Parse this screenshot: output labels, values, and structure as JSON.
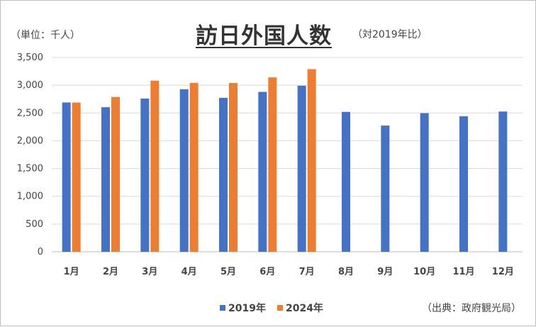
{
  "chart_data": {
    "type": "bar",
    "title": "訪日外国人数",
    "subtitle": "（対2019年比）",
    "unit_label": "（単位：千人）",
    "source": "（出典：政府観光局）",
    "categories": [
      "1月",
      "2月",
      "3月",
      "4月",
      "5月",
      "6月",
      "7月",
      "8月",
      "9月",
      "10月",
      "11月",
      "12月"
    ],
    "series": [
      {
        "name": "2019年",
        "color": "#4472C4",
        "values": [
          2689,
          2604,
          2760,
          2927,
          2773,
          2880,
          2991,
          2520,
          2273,
          2497,
          2441,
          2526
        ]
      },
      {
        "name": "2024年",
        "color": "#ED7D31",
        "values": [
          2688,
          2788,
          3082,
          3042,
          3040,
          3140,
          3290,
          null,
          null,
          null,
          null,
          null
        ]
      }
    ],
    "ylim": [
      0,
      3500
    ],
    "yticks": [
      0,
      500,
      1000,
      1500,
      2000,
      2500,
      3000,
      3500
    ],
    "ytick_labels": [
      "0",
      "500",
      "1,000",
      "1,500",
      "2,000",
      "2,500",
      "3,000",
      "3,500"
    ],
    "grid": true,
    "legend_position": "bottom"
  }
}
